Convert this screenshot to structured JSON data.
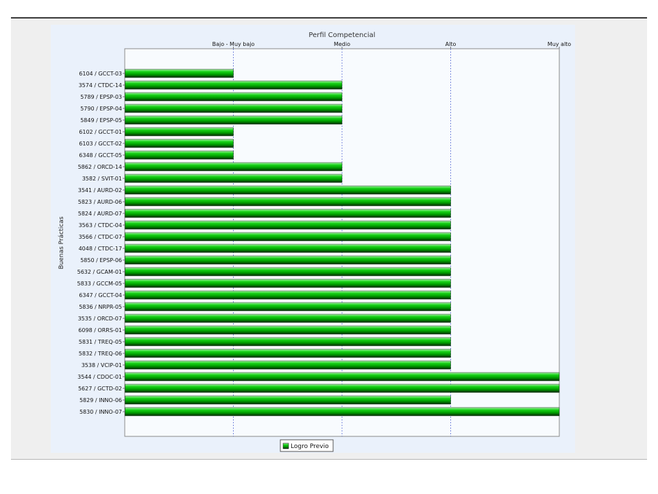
{
  "chart_data": {
    "type": "bar",
    "orientation": "horizontal",
    "title": "Perfil Competencial",
    "xlabel": "Perfil Competencial",
    "ylabel": "Buenas Prácticas",
    "x_ticks": [
      "Bajo - Muy bajo",
      "Medio",
      "Alto",
      "Muy alto"
    ],
    "x_axis_position": "top",
    "xlim": [
      0,
      4
    ],
    "grid": true,
    "legend_position": "bottom-center",
    "categories": [
      "6104 / GCCT-03",
      "3574 / CTDC-14",
      "5789 / EPSP-03",
      "5790 / EPSP-04",
      "5849 / EPSP-05",
      "6102 / GCCT-01",
      "6103 / GCCT-02",
      "6348 / GCCT-05",
      "5862 / ORCD-14",
      "3582 / SVIT-01",
      "3541 / AURD-02",
      "5823 / AURD-06",
      "5824 / AURD-07",
      "3563 / CTDC-04",
      "3566 / CTDC-07",
      "4048 / CTDC-17",
      "5850 / EPSP-06",
      "5632 / GCAM-01",
      "5833 / GCCM-05",
      "6347 / GCCT-04",
      "5836 / NRPR-05",
      "3535 / ORCD-07",
      "6098 / ORRS-01",
      "5831 / TREQ-05",
      "5832 / TREQ-06",
      "3538 / VCIP-01",
      "3544 / CDOC-01",
      "5627 / GCTD-02",
      "5829 / INNO-06",
      "5830 / INNO-07"
    ],
    "series": [
      {
        "name": "Logro Previo",
        "color": "#00c000",
        "values": [
          1,
          2,
          2,
          2,
          2,
          1,
          1,
          1,
          2,
          2,
          3,
          3,
          3,
          3,
          3,
          3,
          3,
          3,
          3,
          3,
          3,
          3,
          3,
          3,
          3,
          3,
          4,
          4,
          3,
          4
        ]
      }
    ]
  },
  "legend": {
    "label": "Logro Previo"
  }
}
